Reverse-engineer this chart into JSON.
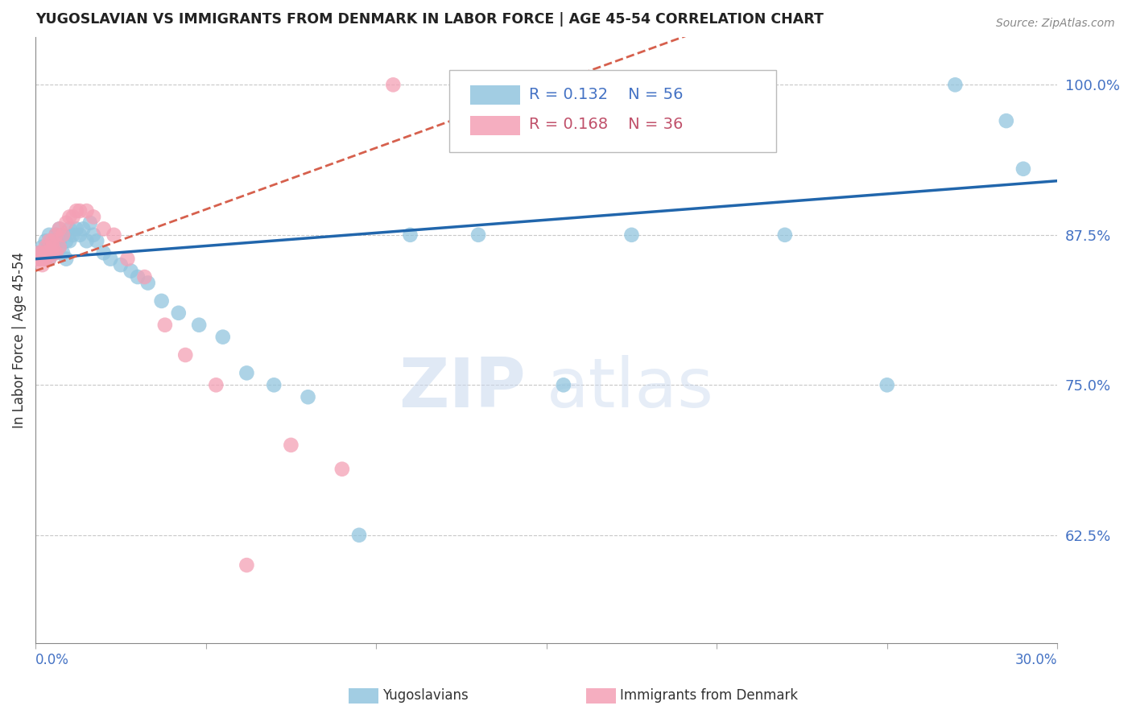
{
  "title": "YUGOSLAVIAN VS IMMIGRANTS FROM DENMARK IN LABOR FORCE | AGE 45-54 CORRELATION CHART",
  "source_text": "Source: ZipAtlas.com",
  "ylabel": "In Labor Force | Age 45-54",
  "legend_label_blue": "Yugoslavians",
  "legend_label_pink": "Immigrants from Denmark",
  "r_blue": 0.132,
  "n_blue": 56,
  "r_pink": 0.168,
  "n_pink": 36,
  "watermark_zip": "ZIP",
  "watermark_atlas": "atlas",
  "blue_color": "#92c5de",
  "pink_color": "#f4a0b5",
  "trend_blue": "#2166ac",
  "trend_pink": "#d6604d",
  "right_yticks": [
    0.625,
    0.75,
    0.875,
    1.0
  ],
  "right_yticklabels": [
    "62.5%",
    "75.0%",
    "87.5%",
    "100.0%"
  ],
  "xmin": 0.0,
  "xmax": 0.3,
  "ymin": 0.535,
  "ymax": 1.04,
  "blue_x": [
    0.001,
    0.001,
    0.002,
    0.002,
    0.003,
    0.003,
    0.003,
    0.004,
    0.004,
    0.004,
    0.005,
    0.005,
    0.005,
    0.006,
    0.006,
    0.007,
    0.007,
    0.007,
    0.008,
    0.008,
    0.009,
    0.009,
    0.01,
    0.01,
    0.011,
    0.012,
    0.013,
    0.014,
    0.015,
    0.016,
    0.017,
    0.018,
    0.02,
    0.022,
    0.025,
    0.028,
    0.03,
    0.033,
    0.037,
    0.042,
    0.048,
    0.055,
    0.062,
    0.07,
    0.08,
    0.095,
    0.11,
    0.13,
    0.155,
    0.175,
    0.195,
    0.22,
    0.25,
    0.27,
    0.285,
    0.29
  ],
  "blue_y": [
    0.855,
    0.86,
    0.865,
    0.86,
    0.87,
    0.855,
    0.86,
    0.875,
    0.865,
    0.855,
    0.86,
    0.87,
    0.865,
    0.875,
    0.86,
    0.88,
    0.865,
    0.87,
    0.875,
    0.86,
    0.87,
    0.855,
    0.88,
    0.87,
    0.875,
    0.88,
    0.875,
    0.88,
    0.87,
    0.885,
    0.875,
    0.87,
    0.86,
    0.855,
    0.85,
    0.845,
    0.84,
    0.835,
    0.82,
    0.81,
    0.8,
    0.79,
    0.76,
    0.75,
    0.74,
    0.625,
    0.875,
    0.875,
    0.75,
    0.875,
    0.97,
    0.875,
    0.75,
    1.0,
    0.97,
    0.93
  ],
  "pink_x": [
    0.001,
    0.001,
    0.002,
    0.002,
    0.002,
    0.003,
    0.003,
    0.003,
    0.004,
    0.004,
    0.005,
    0.005,
    0.005,
    0.006,
    0.006,
    0.007,
    0.007,
    0.008,
    0.009,
    0.01,
    0.011,
    0.012,
    0.013,
    0.015,
    0.017,
    0.02,
    0.023,
    0.027,
    0.032,
    0.038,
    0.044,
    0.053,
    0.062,
    0.075,
    0.09,
    0.105
  ],
  "pink_y": [
    0.855,
    0.86,
    0.86,
    0.855,
    0.85,
    0.855,
    0.865,
    0.86,
    0.87,
    0.855,
    0.87,
    0.86,
    0.865,
    0.875,
    0.86,
    0.88,
    0.865,
    0.875,
    0.885,
    0.89,
    0.89,
    0.895,
    0.895,
    0.895,
    0.89,
    0.88,
    0.875,
    0.855,
    0.84,
    0.8,
    0.775,
    0.75,
    0.6,
    0.7,
    0.68,
    1.0
  ],
  "trend_blue_x0": 0.0,
  "trend_blue_x1": 0.3,
  "trend_blue_y0": 0.855,
  "trend_blue_y1": 0.92,
  "trend_pink_x0": 0.0,
  "trend_pink_x1": 0.2,
  "trend_pink_y0": 0.845,
  "trend_pink_y1": 1.05
}
